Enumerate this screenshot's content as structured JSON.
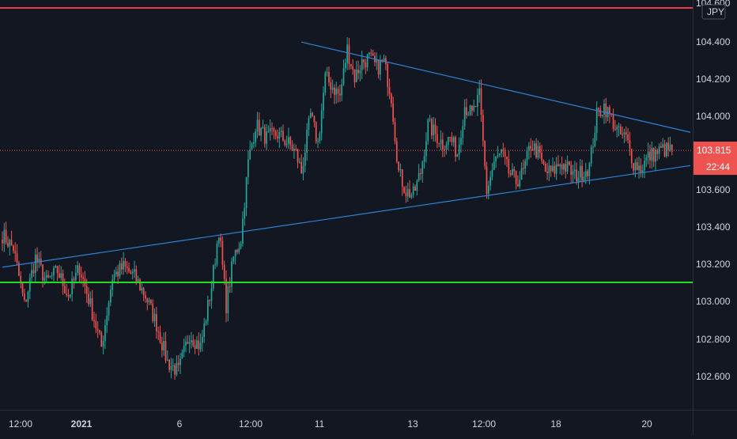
{
  "chart_data": {
    "type": "candlestick",
    "currency": "JPY",
    "y_axis_ticks": [
      "104.600",
      "104.400",
      "104.200",
      "104.000",
      "103.600",
      "103.400",
      "103.200",
      "103.000",
      "102.800",
      "102.600"
    ],
    "x_axis_ticks": [
      "12:00",
      "2021",
      "6",
      "12:00",
      "11",
      "13",
      "12:00",
      "18",
      "20"
    ],
    "ylim": [
      102.47,
      104.62
    ],
    "current_price": {
      "value": "103.815",
      "countdown": "22:44",
      "color": "#ef5350"
    },
    "horizontal_lines": [
      {
        "name": "resistance",
        "price": 104.565,
        "color": "#f23645"
      },
      {
        "name": "support",
        "price": 103.12,
        "color": "#22dd22"
      }
    ],
    "trendlines": [
      {
        "name": "upper",
        "color": "#2f82d8",
        "from": {
          "bar": 163,
          "price": 104.385
        },
        "to": {
          "bar": 375,
          "price": 103.91
        }
      },
      {
        "name": "lower",
        "color": "#2f82d8",
        "from": {
          "bar": 0,
          "price": 103.2
        },
        "to": {
          "bar": 375,
          "price": 103.735
        }
      }
    ],
    "colors": {
      "up": "#26a69a",
      "down": "#ef5350",
      "background": "#131722",
      "axis_text": "#d1d4dc"
    },
    "bar_count": 366,
    "price_anchors": [
      [
        0,
        103.37
      ],
      [
        6,
        103.3
      ],
      [
        12,
        103.0
      ],
      [
        18,
        103.25
      ],
      [
        24,
        103.12
      ],
      [
        30,
        103.18
      ],
      [
        36,
        103.05
      ],
      [
        42,
        103.2
      ],
      [
        48,
        103.0
      ],
      [
        54,
        102.78
      ],
      [
        60,
        103.15
      ],
      [
        66,
        103.2
      ],
      [
        72,
        103.15
      ],
      [
        78,
        103.05
      ],
      [
        84,
        102.9
      ],
      [
        90,
        102.7
      ],
      [
        96,
        102.65
      ],
      [
        102,
        102.85
      ],
      [
        108,
        102.78
      ],
      [
        114,
        103.1
      ],
      [
        118,
        103.4
      ],
      [
        122,
        103.0
      ],
      [
        126,
        103.25
      ],
      [
        130,
        103.35
      ],
      [
        134,
        103.75
      ],
      [
        138,
        103.95
      ],
      [
        144,
        103.88
      ],
      [
        150,
        103.9
      ],
      [
        156,
        103.85
      ],
      [
        160,
        103.8
      ],
      [
        163,
        103.7
      ],
      [
        168,
        104.0
      ],
      [
        172,
        103.85
      ],
      [
        176,
        104.2
      ],
      [
        180,
        104.15
      ],
      [
        184,
        104.1
      ],
      [
        188,
        104.35
      ],
      [
        192,
        104.2
      ],
      [
        196,
        104.28
      ],
      [
        200,
        104.3
      ],
      [
        204,
        104.25
      ],
      [
        208,
        104.28
      ],
      [
        212,
        104.1
      ],
      [
        216,
        103.7
      ],
      [
        220,
        103.6
      ],
      [
        224,
        103.58
      ],
      [
        228,
        103.7
      ],
      [
        232,
        103.95
      ],
      [
        236,
        103.9
      ],
      [
        240,
        103.85
      ],
      [
        244,
        103.88
      ],
      [
        248,
        103.8
      ],
      [
        252,
        104.05
      ],
      [
        256,
        104.0
      ],
      [
        260,
        104.1
      ],
      [
        264,
        103.6
      ],
      [
        268,
        103.75
      ],
      [
        272,
        103.8
      ],
      [
        276,
        103.7
      ],
      [
        280,
        103.65
      ],
      [
        284,
        103.7
      ],
      [
        288,
        103.85
      ],
      [
        292,
        103.8
      ],
      [
        296,
        103.7
      ],
      [
        300,
        103.7
      ],
      [
        304,
        103.75
      ],
      [
        308,
        103.72
      ],
      [
        312,
        103.68
      ],
      [
        316,
        103.7
      ],
      [
        320,
        103.73
      ],
      [
        324,
        104.0
      ],
      [
        328,
        104.05
      ],
      [
        332,
        103.98
      ],
      [
        336,
        103.9
      ],
      [
        340,
        103.88
      ],
      [
        344,
        103.75
      ],
      [
        348,
        103.72
      ],
      [
        352,
        103.78
      ],
      [
        356,
        103.8
      ],
      [
        360,
        103.82
      ],
      [
        365,
        103.815
      ]
    ]
  }
}
